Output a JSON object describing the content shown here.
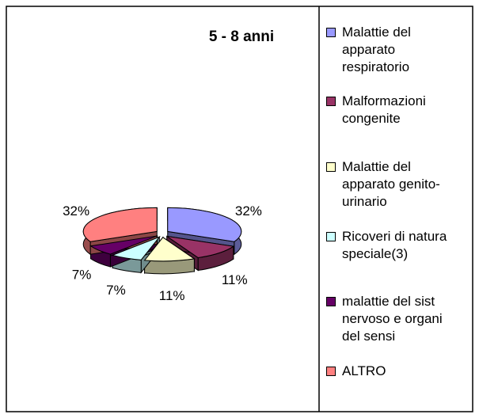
{
  "chart_data": {
    "type": "pie3d",
    "title": "5 - 8 anni",
    "categories": [
      "Malattie del apparato respiratorio",
      "Malformazioni congenite",
      "Malattie del apparato genito-urinario",
      "Ricoveri di natura speciale(3)",
      "malattie del sist nervoso e organi del sensi",
      "ALTRO"
    ],
    "values": [
      32,
      11,
      11,
      7,
      7,
      32
    ],
    "value_labels": [
      "32%",
      "11%",
      "11%",
      "7%",
      "7%",
      "32%"
    ],
    "colors": [
      "#9999ff",
      "#993366",
      "#ffffcc",
      "#ccffff",
      "#660066",
      "#ff8080"
    ],
    "legend": "right"
  }
}
